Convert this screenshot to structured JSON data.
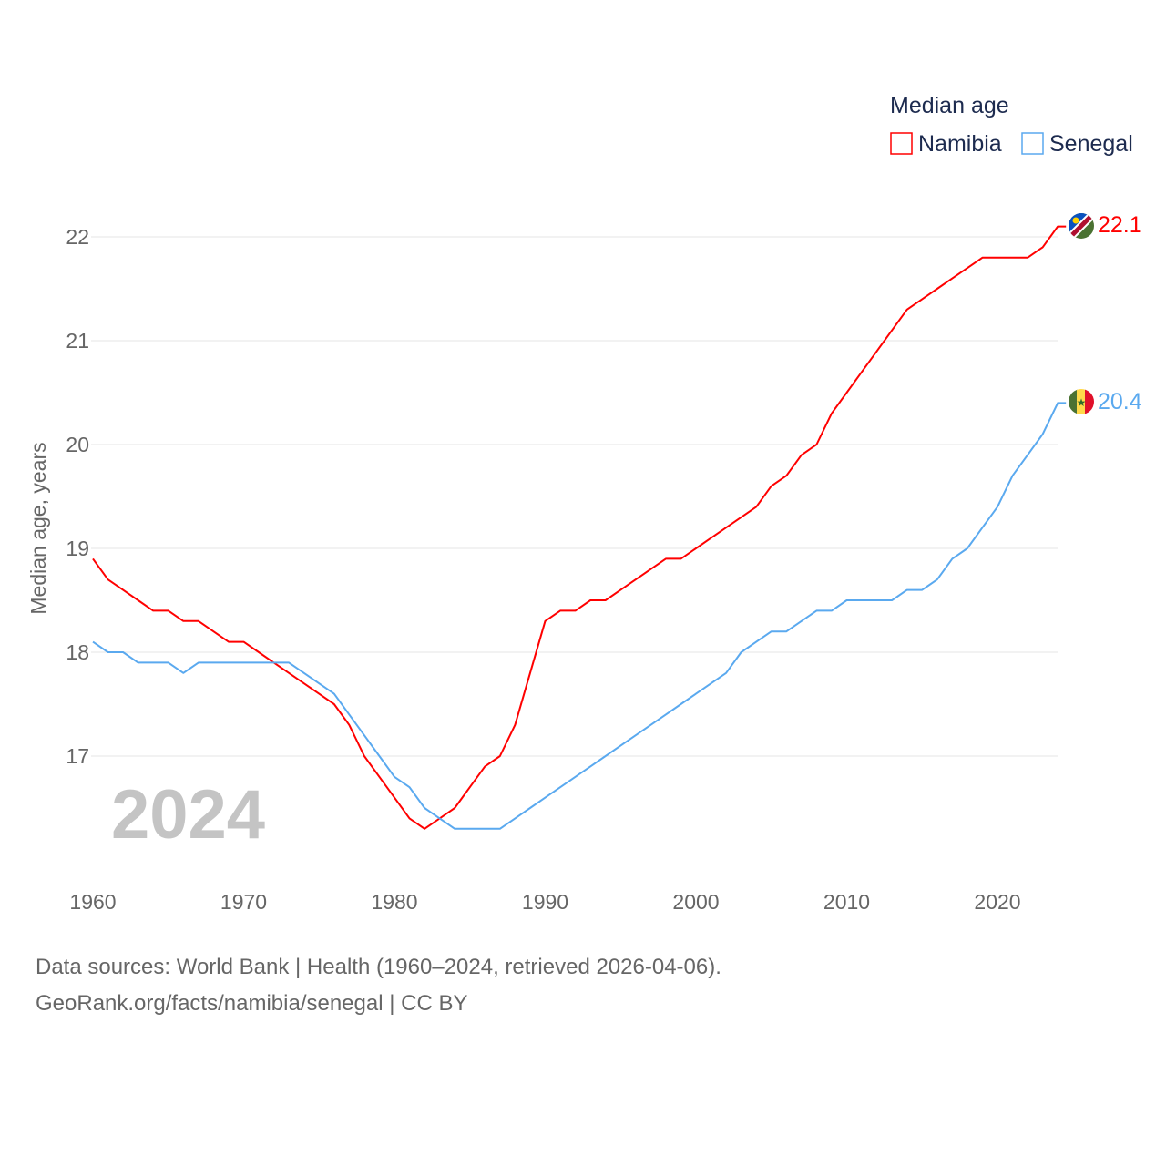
{
  "chart_data": {
    "type": "line",
    "title": "",
    "legend_title": "Median age",
    "ylabel": "Median age, years",
    "xlabel": "",
    "ylim": [
      16,
      22.6
    ],
    "xlim": [
      1960,
      2024
    ],
    "yticks": [
      17,
      18,
      19,
      20,
      21,
      22
    ],
    "xticks": [
      1960,
      1970,
      1980,
      1990,
      2000,
      2010,
      2020
    ],
    "legend_position": "top-right",
    "grid": true,
    "year_watermark": "2024",
    "x": [
      1960,
      1961,
      1962,
      1963,
      1964,
      1965,
      1966,
      1967,
      1968,
      1969,
      1970,
      1971,
      1972,
      1973,
      1974,
      1975,
      1976,
      1977,
      1978,
      1979,
      1980,
      1981,
      1982,
      1983,
      1984,
      1985,
      1986,
      1987,
      1988,
      1989,
      1990,
      1991,
      1992,
      1993,
      1994,
      1995,
      1996,
      1997,
      1998,
      1999,
      2000,
      2001,
      2002,
      2003,
      2004,
      2005,
      2006,
      2007,
      2008,
      2009,
      2010,
      2011,
      2012,
      2013,
      2014,
      2015,
      2016,
      2017,
      2018,
      2019,
      2020,
      2021,
      2022,
      2023,
      2024
    ],
    "series": [
      {
        "name": "Namibia",
        "color": "#ff0000",
        "end_label": "22.1",
        "values": [
          18.9,
          18.7,
          18.6,
          18.5,
          18.4,
          18.4,
          18.3,
          18.3,
          18.2,
          18.1,
          18.1,
          18.0,
          17.9,
          17.8,
          17.7,
          17.6,
          17.5,
          17.3,
          17.0,
          16.8,
          16.6,
          16.4,
          16.3,
          16.4,
          16.5,
          16.7,
          16.9,
          17.0,
          17.3,
          17.8,
          18.3,
          18.4,
          18.4,
          18.5,
          18.5,
          18.6,
          18.7,
          18.8,
          18.9,
          18.9,
          19.0,
          19.1,
          19.2,
          19.3,
          19.4,
          19.6,
          19.7,
          19.9,
          20.0,
          20.3,
          20.5,
          20.7,
          20.9,
          21.1,
          21.3,
          21.4,
          21.5,
          21.6,
          21.7,
          21.8,
          21.8,
          21.8,
          21.8,
          21.9,
          22.1
        ]
      },
      {
        "name": "Senegal",
        "color": "#5aa9ef",
        "end_label": "20.4",
        "values": [
          18.1,
          18.0,
          18.0,
          17.9,
          17.9,
          17.9,
          17.8,
          17.9,
          17.9,
          17.9,
          17.9,
          17.9,
          17.9,
          17.9,
          17.8,
          17.7,
          17.6,
          17.4,
          17.2,
          17.0,
          16.8,
          16.7,
          16.5,
          16.4,
          16.3,
          16.3,
          16.3,
          16.3,
          16.4,
          16.5,
          16.6,
          16.7,
          16.8,
          16.9,
          17.0,
          17.1,
          17.2,
          17.3,
          17.4,
          17.5,
          17.6,
          17.7,
          17.8,
          18.0,
          18.1,
          18.2,
          18.2,
          18.3,
          18.4,
          18.4,
          18.5,
          18.5,
          18.5,
          18.5,
          18.6,
          18.6,
          18.7,
          18.9,
          19.0,
          19.2,
          19.4,
          19.7,
          19.9,
          20.1,
          20.4
        ]
      }
    ]
  },
  "footer": {
    "line1": "Data sources: World Bank | Health (1960–2024, retrieved 2026-04-06).",
    "line2": "GeoRank.org/facts/namibia/senegal | CC BY"
  }
}
